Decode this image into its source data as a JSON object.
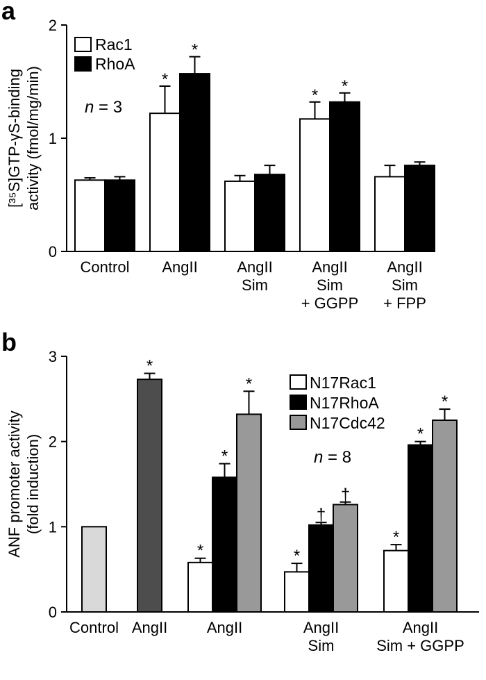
{
  "chart_data": [
    {
      "type": "bar",
      "panel": "a",
      "title": "",
      "ylabel": "[³⁵S]GTP-γS-binding activity (fmol/mg/min)",
      "ylabel_lines": [
        "[³⁵S]GTP-γS-binding",
        "activity (fmol/mg/min)"
      ],
      "xlabel": "",
      "ylim": [
        0,
        2
      ],
      "yticks": [
        0,
        1,
        2
      ],
      "categories": [
        [
          "Control"
        ],
        [
          "AngII"
        ],
        [
          "AngII",
          "Sim"
        ],
        [
          "AngII",
          "Sim",
          "+ GGPP"
        ],
        [
          "AngII",
          "Sim",
          "+ FPP"
        ]
      ],
      "series": [
        {
          "name": "Rac1",
          "color": "#ffffff",
          "values": [
            0.63,
            1.22,
            0.62,
            1.17,
            0.66
          ],
          "errors": [
            0.02,
            0.24,
            0.05,
            0.15,
            0.1
          ],
          "marks": [
            "",
            "*",
            "",
            "*",
            ""
          ]
        },
        {
          "name": "RhoA",
          "color": "#000000",
          "values": [
            0.63,
            1.57,
            0.68,
            1.32,
            0.76
          ],
          "errors": [
            0.03,
            0.15,
            0.08,
            0.08,
            0.03
          ],
          "marks": [
            "",
            "*",
            "",
            "*",
            ""
          ]
        }
      ],
      "annotation": {
        "prefix": "n",
        "suffix": " = 3"
      },
      "legend": "top-left",
      "grid": false
    },
    {
      "type": "bar",
      "panel": "b",
      "title": "",
      "ylabel": "ANF promoter activity (fold induction)",
      "ylabel_lines": [
        "ANF promoter activity",
        "(fold induction)"
      ],
      "xlabel": "",
      "ylim": [
        0,
        3
      ],
      "yticks": [
        0,
        1,
        2,
        3
      ],
      "groups": [
        {
          "label": [
            "Control"
          ],
          "bars": [
            {
              "value": 1.0,
              "error": 0,
              "color": "#d9d9d9",
              "mark": ""
            }
          ]
        },
        {
          "label": [
            "AngII"
          ],
          "bars": [
            {
              "value": 2.73,
              "error": 0.07,
              "color": "#4d4d4d",
              "mark": "*"
            }
          ]
        },
        {
          "label": [
            "AngII"
          ],
          "bars": [
            {
              "series": "N17Rac1",
              "value": 0.58,
              "error": 0.05,
              "color": "#ffffff",
              "mark": "*"
            },
            {
              "series": "N17RhoA",
              "value": 1.58,
              "error": 0.16,
              "color": "#000000",
              "mark": "*"
            },
            {
              "series": "N17Cdc42",
              "value": 2.32,
              "error": 0.27,
              "color": "#999999",
              "mark": "*"
            }
          ]
        },
        {
          "label": [
            "AngII",
            "Sim"
          ],
          "bars": [
            {
              "series": "N17Rac1",
              "value": 0.47,
              "error": 0.1,
              "color": "#ffffff",
              "mark": "*"
            },
            {
              "series": "N17RhoA",
              "value": 1.02,
              "error": 0.03,
              "color": "#000000",
              "mark": "†"
            },
            {
              "series": "N17Cdc42",
              "value": 1.26,
              "error": 0.03,
              "color": "#999999",
              "mark": "†"
            }
          ]
        },
        {
          "label": [
            "AngII",
            "Sim + GGPP"
          ],
          "bars": [
            {
              "series": "N17Rac1",
              "value": 0.72,
              "error": 0.07,
              "color": "#ffffff",
              "mark": "*"
            },
            {
              "series": "N17RhoA",
              "value": 1.96,
              "error": 0.04,
              "color": "#000000",
              "mark": "*"
            },
            {
              "series": "N17Cdc42",
              "value": 2.25,
              "error": 0.13,
              "color": "#999999",
              "mark": "*"
            }
          ]
        }
      ],
      "legend_entries": [
        {
          "name": "N17Rac1",
          "color": "#ffffff"
        },
        {
          "name": "N17RhoA",
          "color": "#000000"
        },
        {
          "name": "N17Cdc42",
          "color": "#999999"
        }
      ],
      "annotation": {
        "prefix": "n",
        "suffix": " = 8"
      },
      "legend": "top-right",
      "grid": false
    }
  ],
  "panel_labels": [
    "a",
    "b"
  ]
}
